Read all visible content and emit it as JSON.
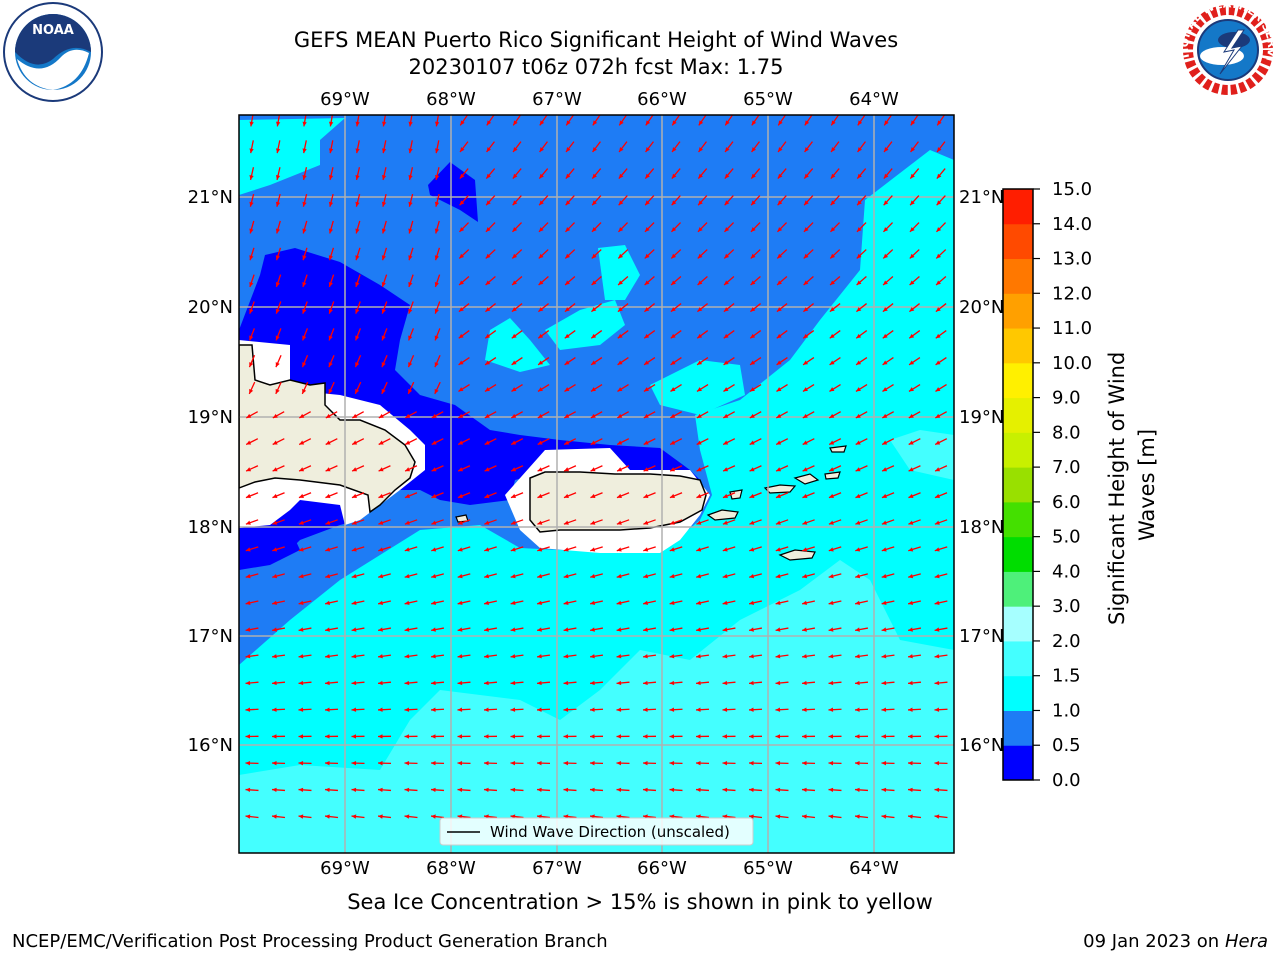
{
  "title": {
    "line1": "GEFS MEAN Puerto Rico Significant Height of Wind Waves",
    "line2": "20230107 t06z 072h fcst   Max: 1.75"
  },
  "note": "Sea Ice Concentration > 15% is shown in pink to yellow",
  "footer": {
    "left": "NCEP/EMC/Verification Post Processing Product Generation Branch",
    "right_prefix": "09 Jan 2023 on ",
    "right_host": "Hera"
  },
  "logos": {
    "noaa_text": "NOAA",
    "nws_text": "NATIONAL WEATHER SERVICE"
  },
  "map": {
    "lon_labels": [
      "69°W",
      "68°W",
      "67°W",
      "66°W",
      "65°W",
      "64°W"
    ],
    "lat_labels": [
      "21°N",
      "20°N",
      "19°N",
      "18°N",
      "17°N",
      "16°N"
    ],
    "legend_label": "Wind Wave Direction (unscaled)"
  },
  "colorbar": {
    "label": "Significant Height of Wind Waves [m]",
    "label_line1": "Significant Height of Wind",
    "label_line2": "Waves [m]",
    "ticks": [
      "0.0",
      "0.5",
      "1.0",
      "1.5",
      "2.0",
      "3.0",
      "4.0",
      "5.0",
      "6.0",
      "7.0",
      "8.0",
      "9.0",
      "10.0",
      "11.0",
      "12.0",
      "13.0",
      "14.0",
      "15.0"
    ],
    "colors": [
      "#0000ff",
      "#1e7cf5",
      "#00ffff",
      "#44ffff",
      "#a6ffff",
      "#4ef07a",
      "#00dd00",
      "#44e000",
      "#99e000",
      "#c8f000",
      "#e5f000",
      "#fff000",
      "#ffc800",
      "#ffa000",
      "#ff7800",
      "#ff4a00",
      "#ff1e00"
    ]
  },
  "colors": {
    "land": "#efeedd",
    "arrow": "#ff0000",
    "grid": "#b0b0b0"
  }
}
